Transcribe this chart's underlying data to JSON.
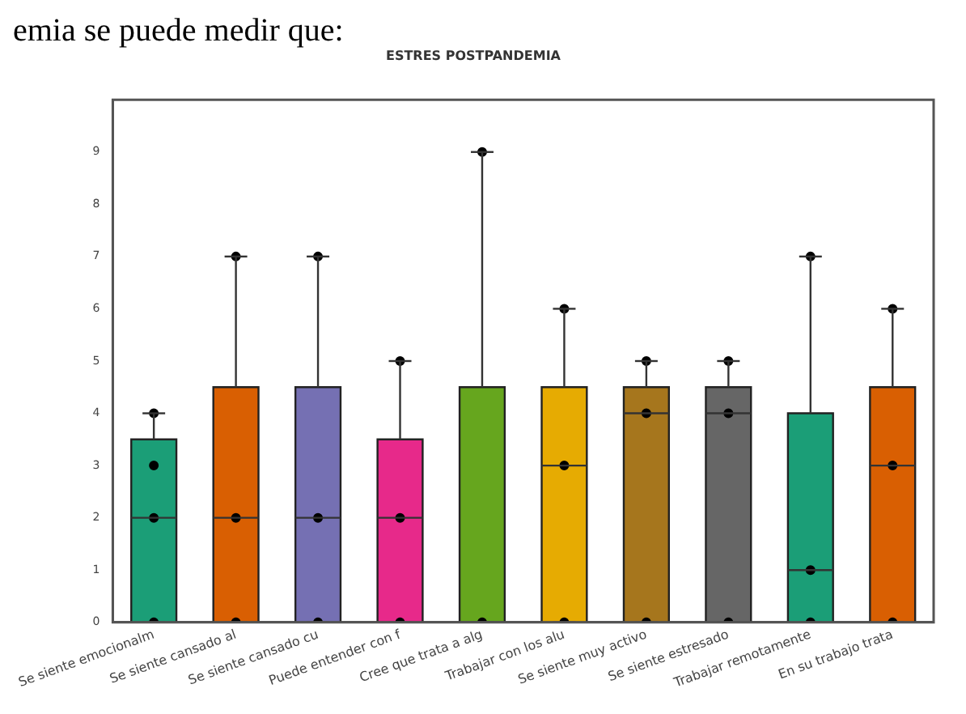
{
  "chart_data": {
    "type": "box",
    "title": "ESTRES POSTPANDEMIA",
    "annotations": [
      "emia se puede medir que:"
    ],
    "categories": [
      "Se siente emocionalm",
      "Se siente cansado al",
      "Se siente cansado cu",
      "Puede entender con f",
      "Cree que trata a alg",
      "Trabajar con los alu",
      "Se siente muy activo",
      "Se siente estresado",
      "Trabajar remotamente",
      "En su trabajo trata"
    ],
    "colors": [
      "#1b9e77",
      "#d95f02",
      "#7570b3",
      "#e7298a",
      "#66a61e",
      "#e6ab02",
      "#a6761d",
      "#666666",
      "#1b9e77",
      "#d95f02"
    ],
    "boxes": [
      {
        "low": 0,
        "q1": 0,
        "median": 2,
        "q3": 3.5,
        "high": 4
      },
      {
        "low": 0,
        "q1": 0,
        "median": 2,
        "q3": 4.5,
        "high": 7
      },
      {
        "low": 0,
        "q1": 0,
        "median": 2,
        "q3": 4.5,
        "high": 7
      },
      {
        "low": 0,
        "q1": 0,
        "median": 2,
        "q3": 3.5,
        "high": 5
      },
      {
        "low": 0,
        "q1": 0,
        "median": 0,
        "q3": 4.5,
        "high": 9
      },
      {
        "low": 0,
        "q1": 0,
        "median": 3,
        "q3": 4.5,
        "high": 6
      },
      {
        "low": 0,
        "q1": 0,
        "median": 4,
        "q3": 4.5,
        "high": 5
      },
      {
        "low": 0,
        "q1": 0,
        "median": 4,
        "q3": 4.5,
        "high": 5
      },
      {
        "low": 0,
        "q1": 0,
        "median": 1,
        "q3": 4,
        "high": 7
      },
      {
        "low": 0,
        "q1": 0,
        "median": 3,
        "q3": 4.5,
        "high": 6
      }
    ],
    "series": [
      {
        "type": "scatter",
        "color": "#000000",
        "x": [
          "Se siente emocionalm",
          "Se siente emocionalm",
          "Se siente emocionalm",
          "Se siente emocionalm",
          "Se siente cansado al",
          "Se siente cansado al",
          "Se siente cansado al",
          "Se siente cansado cu",
          "Se siente cansado cu",
          "Se siente cansado cu",
          "Puede entender con f",
          "Puede entender con f",
          "Puede entender con f",
          "Cree que trata a alg",
          "Cree que trata a alg",
          "Trabajar con los alu",
          "Trabajar con los alu",
          "Trabajar con los alu",
          "Se siente muy activo",
          "Se siente muy activo",
          "Se siente muy activo",
          "Se siente estresado",
          "Se siente estresado",
          "Se siente estresado",
          "Trabajar remotamente",
          "Trabajar remotamente",
          "Trabajar remotamente",
          "En su trabajo trata",
          "En su trabajo trata",
          "En su trabajo trata"
        ],
        "values": [
          0,
          2,
          3,
          4,
          0,
          2,
          7,
          0,
          2,
          7,
          0,
          2,
          5,
          0,
          9,
          0,
          3,
          6,
          0,
          4,
          5,
          0,
          4,
          5,
          0,
          1,
          7,
          0,
          3,
          6
        ]
      }
    ],
    "ylim": [
      0,
      10
    ],
    "yticks": [
      0,
      1,
      2,
      3,
      4,
      5,
      6,
      7,
      8,
      9
    ],
    "grid": false,
    "legend": false
  }
}
